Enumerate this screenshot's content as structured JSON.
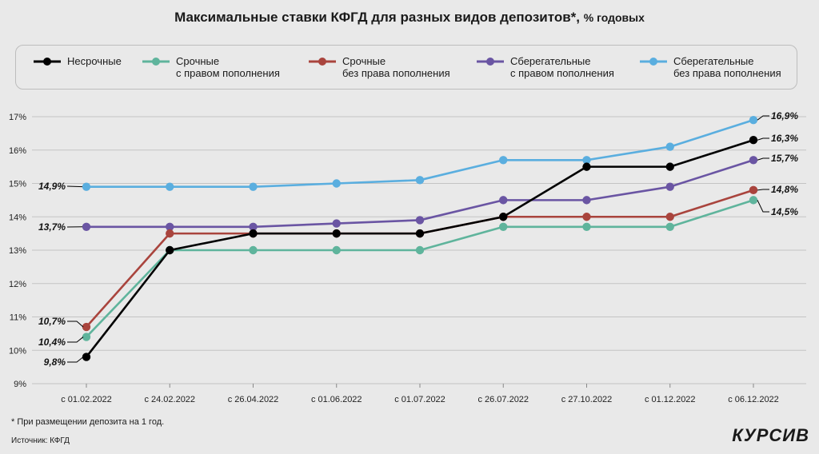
{
  "header": {
    "title": "Максимальные ставки КФГД для разных видов депозитов*,",
    "subtitle": "% годовых"
  },
  "legend": [
    {
      "line1": "Несрочные",
      "line2": "",
      "color": "#000000"
    },
    {
      "line1": "Срочные",
      "line2": "с правом пополнения",
      "color": "#5fb49c"
    },
    {
      "line1": "Срочные",
      "line2": "без права пополнения",
      "color": "#a9443d"
    },
    {
      "line1": "Сберегательные",
      "line2": "с правом пополнения",
      "color": "#6a55a3"
    },
    {
      "line1": "Сберегательные",
      "line2": "без права пополнения",
      "color": "#5aaedf"
    }
  ],
  "chart_data": {
    "type": "line",
    "categories": [
      "с 01.02.2022",
      "с 24.02.2022",
      "с 26.04.2022",
      "с 01.06.2022",
      "с 01.07.2022",
      "с 26.07.2022",
      "с 27.10.2022",
      "с 01.12.2022",
      "с 06.12.2022"
    ],
    "ylim": [
      9,
      17
    ],
    "yticks": [
      "9%",
      "10%",
      "11%",
      "12%",
      "13%",
      "14%",
      "15%",
      "16%",
      "17%"
    ],
    "grid": true,
    "series": [
      {
        "name": "Сберегательные без права пополнения",
        "color": "#5aaedf",
        "values": [
          14.9,
          14.9,
          14.9,
          15.0,
          15.1,
          15.7,
          15.7,
          16.1,
          16.9
        ]
      },
      {
        "name": "Сберегательные с правом пополнения",
        "color": "#6a55a3",
        "values": [
          13.7,
          13.7,
          13.7,
          13.8,
          13.9,
          14.5,
          14.5,
          14.9,
          15.7
        ]
      },
      {
        "name": "Срочные без права пополнения",
        "color": "#a9443d",
        "values": [
          10.7,
          13.5,
          13.5,
          13.5,
          13.5,
          14.0,
          14.0,
          14.0,
          14.8
        ]
      },
      {
        "name": "Срочные с правом пополнения",
        "color": "#5fb49c",
        "values": [
          10.4,
          13.0,
          13.0,
          13.0,
          13.0,
          13.7,
          13.7,
          13.7,
          14.5
        ]
      },
      {
        "name": "Несрочные",
        "color": "#000000",
        "values": [
          9.8,
          13.0,
          13.5,
          13.5,
          13.5,
          14.0,
          15.5,
          15.5,
          16.3
        ]
      }
    ],
    "start_labels": [
      "14,9%",
      "13,7%",
      "10,7%",
      "10,4%",
      "9,8%"
    ],
    "end_labels": [
      "16,9%",
      "16,3%",
      "15,7%",
      "14,8%",
      "14,5%"
    ]
  },
  "footer": {
    "note": "* При размещении депозита на 1 год.",
    "source": "Источник: КФГД",
    "logo": "КУРСИВ"
  }
}
